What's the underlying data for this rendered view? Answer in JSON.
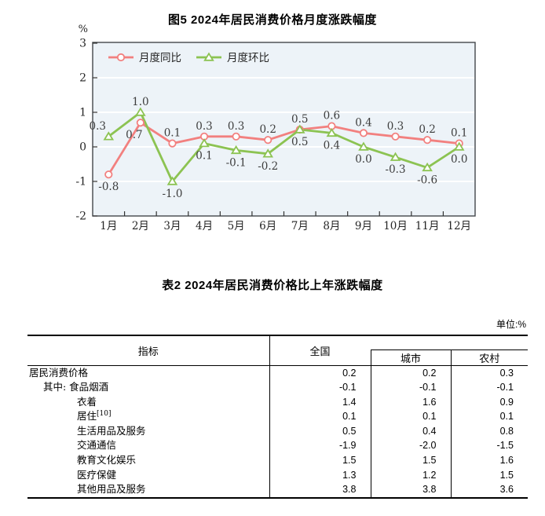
{
  "figure": {
    "title": "图5  2024年居民消费价格月度涨跌幅度",
    "colors": {
      "yoy": "#F2807F",
      "mom": "#8CC352",
      "plot_bg": "#EDF3F8",
      "grid": "#FFFFFF",
      "border": "#43474B",
      "text": "#262626",
      "label_text": "#3D3D3D"
    }
  },
  "chart_data": {
    "type": "line",
    "title": "图5  2024年居民消费价格月度涨跌幅度",
    "ylabel": "%",
    "ylim": [
      -2,
      3
    ],
    "yticks": [
      3,
      2,
      1,
      0,
      -1,
      -2
    ],
    "grid": true,
    "legend_position": "top-left-inside",
    "categories": [
      "1月",
      "2月",
      "3月",
      "4月",
      "5月",
      "6月",
      "7月",
      "8月",
      "9月",
      "10月",
      "11月",
      "12月"
    ],
    "series": [
      {
        "name": "月度同比",
        "marker": "circle",
        "color": "#F2807F",
        "values": [
          -0.8,
          0.7,
          0.1,
          0.3,
          0.3,
          0.2,
          0.5,
          0.6,
          0.4,
          0.3,
          0.2,
          0.1
        ],
        "label_side": [
          "below",
          "below",
          "above",
          "above",
          "above",
          "above",
          "above",
          "above",
          "above",
          "above",
          "above",
          "above"
        ],
        "label_dx": [
          0,
          -8,
          0,
          0,
          0,
          0,
          0,
          0,
          0,
          0,
          0,
          0
        ]
      },
      {
        "name": "月度环比",
        "marker": "triangle",
        "color": "#8CC352",
        "values": [
          0.3,
          1.0,
          -1.0,
          0.1,
          -0.1,
          -0.2,
          0.5,
          0.4,
          0.0,
          -0.3,
          -0.6,
          0.0
        ],
        "label_side": [
          "above",
          "above",
          "below",
          "below",
          "below",
          "below",
          "below",
          "below",
          "below",
          "below",
          "below",
          "below"
        ],
        "label_dx": [
          -14,
          0,
          0,
          0,
          0,
          0,
          0,
          0,
          0,
          0,
          0,
          0
        ]
      }
    ]
  },
  "table": {
    "title": "表2  2024年居民消费价格比上年涨跌幅度",
    "unit_note": "单位:%",
    "columns": [
      "指标",
      "全国",
      "城市",
      "农村"
    ],
    "rows": [
      {
        "label": "居民消费价格",
        "indent": 0,
        "values": [
          "0.2",
          "0.2",
          "0.3"
        ]
      },
      {
        "label": "其中: 食品烟酒",
        "indent": 1,
        "values": [
          "-0.1",
          "-0.1",
          "-0.1"
        ]
      },
      {
        "label": "衣着",
        "indent": 2,
        "values": [
          "1.4",
          "1.6",
          "0.9"
        ]
      },
      {
        "label": "居住",
        "sup": "[10]",
        "indent": 2,
        "values": [
          "0.1",
          "0.1",
          "0.1"
        ]
      },
      {
        "label": "生活用品及服务",
        "indent": 2,
        "values": [
          "0.5",
          "0.4",
          "0.8"
        ]
      },
      {
        "label": "交通通信",
        "indent": 2,
        "values": [
          "-1.9",
          "-2.0",
          "-1.5"
        ]
      },
      {
        "label": "教育文化娱乐",
        "indent": 2,
        "values": [
          "1.5",
          "1.5",
          "1.6"
        ]
      },
      {
        "label": "医疗保健",
        "indent": 2,
        "values": [
          "1.3",
          "1.2",
          "1.5"
        ]
      },
      {
        "label": "其他用品及服务",
        "indent": 2,
        "values": [
          "3.8",
          "3.8",
          "3.6"
        ]
      }
    ]
  }
}
